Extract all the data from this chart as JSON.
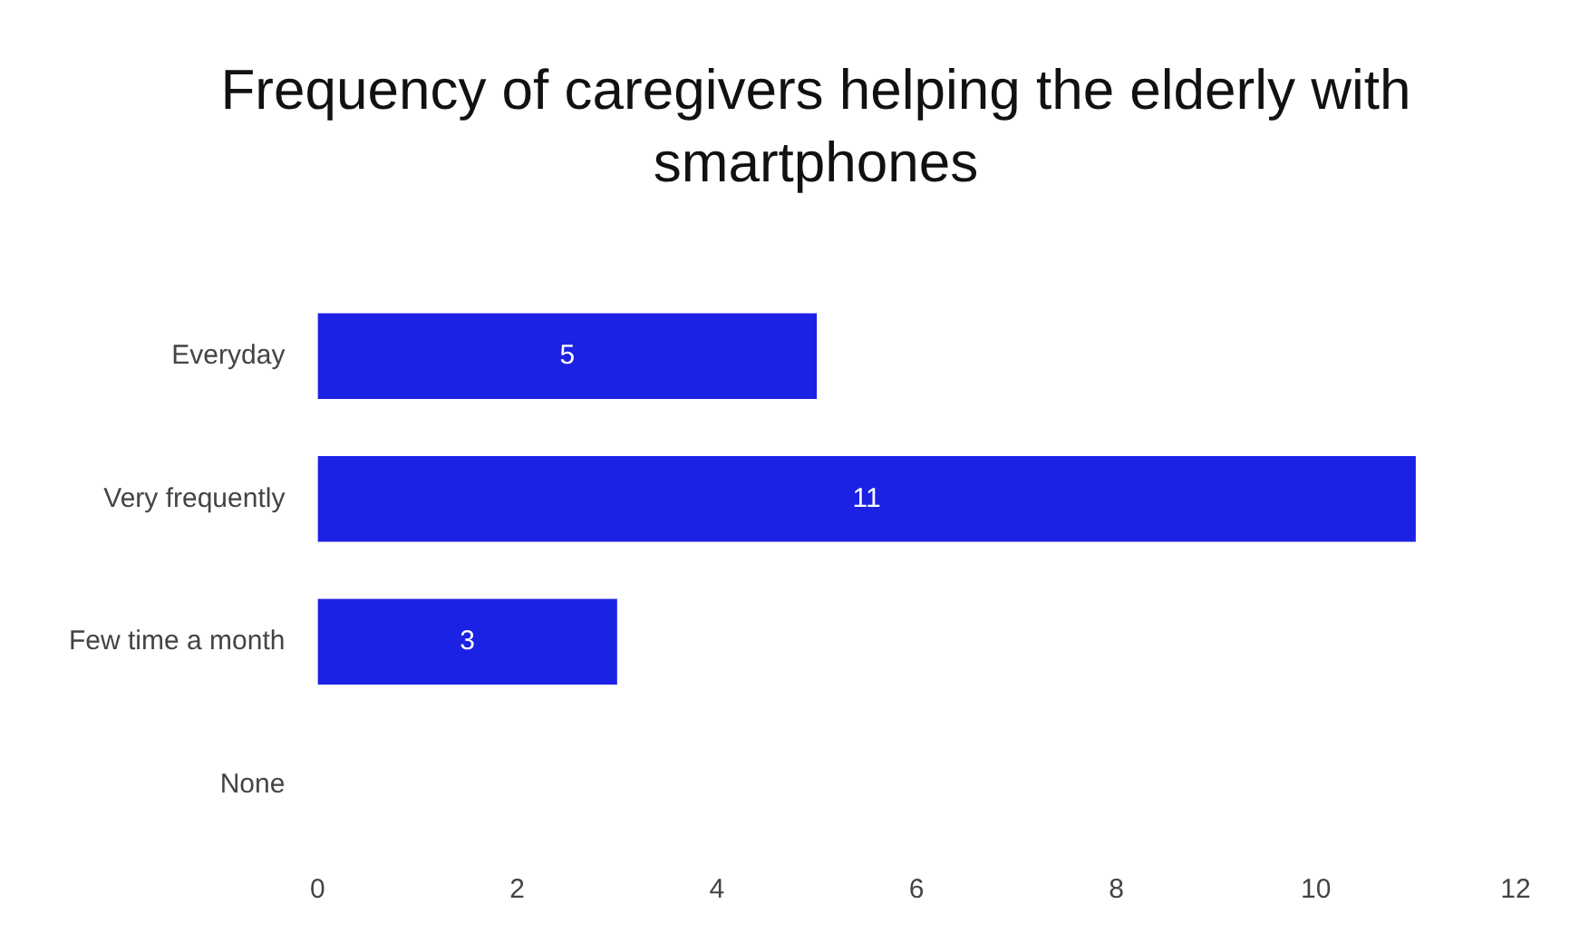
{
  "chart_data": {
    "type": "bar",
    "orientation": "horizontal",
    "title": "Frequency of caregivers helping the elderly with smartphones",
    "categories": [
      "Everyday",
      "Very frequently",
      "Few time a month",
      "None"
    ],
    "values": [
      5,
      11,
      3,
      0
    ],
    "color": "#1c22e3",
    "value_labels": [
      "5",
      "11",
      "3",
      null
    ],
    "xlim": [
      0,
      12
    ],
    "xticks": [
      0,
      2,
      4,
      6,
      8,
      10,
      12
    ],
    "grid": false,
    "legend": false
  }
}
